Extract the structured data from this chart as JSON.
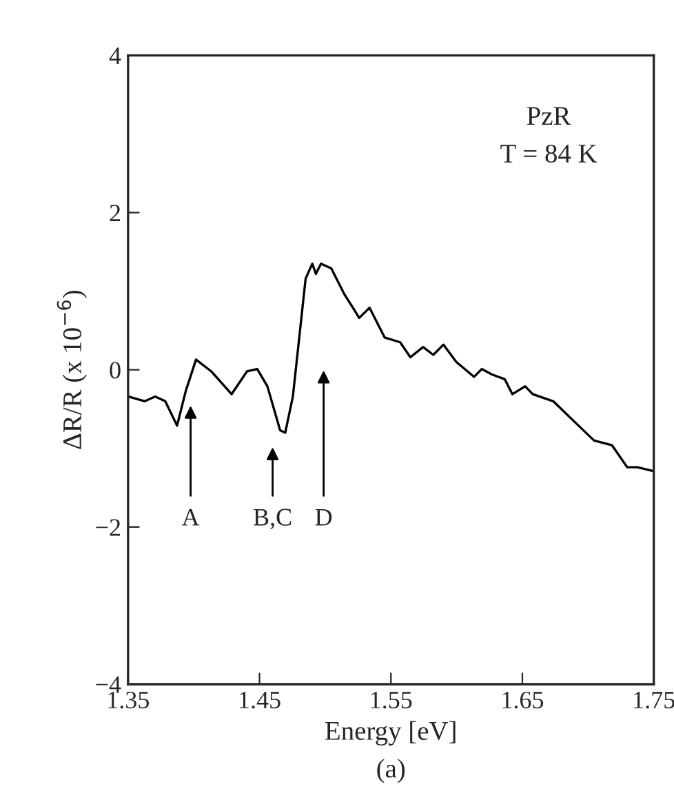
{
  "chart_data": {
    "type": "line",
    "xlabel": "Energy [eV]",
    "ylabel": "ΔR/R (x 10$^{−6}$)",
    "xlim": [
      1.35,
      1.75
    ],
    "ylim": [
      -4,
      4
    ],
    "xticks": [
      1.35,
      1.45,
      1.55,
      1.65,
      1.75
    ],
    "yticks": [
      {
        "value": -4,
        "label": "−4"
      },
      {
        "value": -2,
        "label": "−2"
      },
      0,
      2,
      4
    ],
    "grid": false,
    "legend": false,
    "marker": "none",
    "line_style": "solid",
    "series": [
      {
        "color": "#000000",
        "x": [
          1.35,
          1.3628,
          1.3706,
          1.3783,
          1.3873,
          1.3939,
          1.4017,
          1.4133,
          1.4288,
          1.4405,
          1.4483,
          1.456,
          1.4657,
          1.4696,
          1.4754,
          1.4851,
          1.4902,
          1.4929,
          1.4968,
          1.5046,
          1.5143,
          1.5259,
          1.5337,
          1.5453,
          1.557,
          1.5648,
          1.5745,
          1.5822,
          1.59,
          1.5997,
          1.6133,
          1.6191,
          1.6269,
          1.6366,
          1.6424,
          1.6521,
          1.658,
          1.6735,
          1.689,
          1.7046,
          1.7182,
          1.7298,
          1.7376,
          1.75
        ],
        "values": [
          -0.34,
          -0.4,
          -0.34,
          -0.4,
          -0.71,
          -0.27,
          0.13,
          -0.02,
          -0.31,
          -0.02,
          0.01,
          -0.21,
          -0.77,
          -0.8,
          -0.34,
          1.16,
          1.35,
          1.22,
          1.35,
          1.29,
          0.97,
          0.66,
          0.79,
          0.41,
          0.35,
          0.16,
          0.29,
          0.19,
          0.32,
          0.1,
          -0.09,
          0.01,
          -0.06,
          -0.12,
          -0.31,
          -0.21,
          -0.31,
          -0.4,
          -0.65,
          -0.9,
          -0.96,
          -1.24,
          -1.24,
          -1.29
        ]
      }
    ],
    "annotations": [
      "A",
      "B,C",
      "D",
      "PzR",
      "T = 84 K",
      "(a)"
    ]
  }
}
